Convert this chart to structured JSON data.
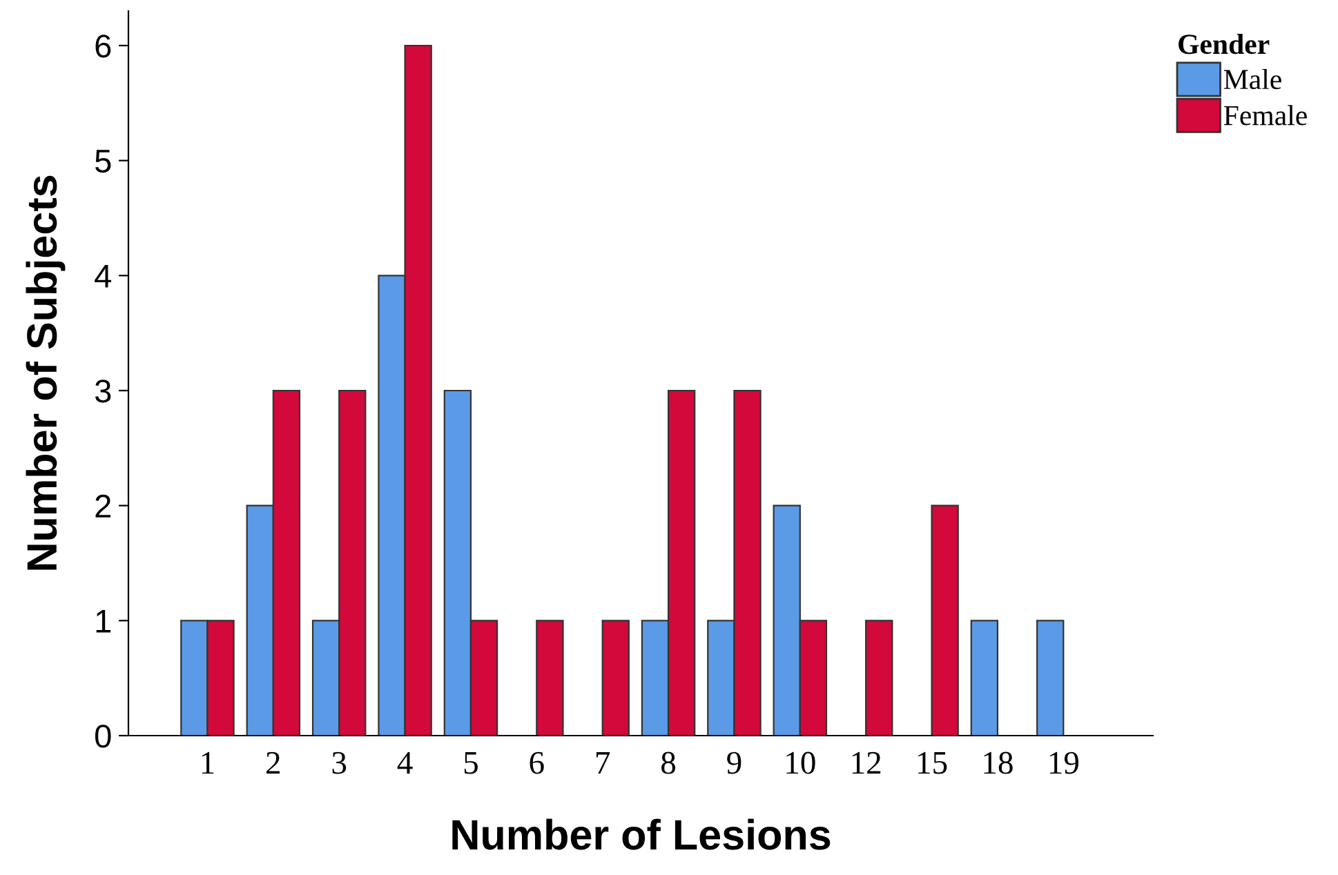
{
  "chart_data": {
    "type": "bar",
    "xlabel": "Number of Lesions",
    "ylabel": "Number of Subjects",
    "legend_title": "Gender",
    "categories": [
      "1",
      "2",
      "3",
      "4",
      "5",
      "6",
      "7",
      "8",
      "9",
      "10",
      "12",
      "15",
      "18",
      "19"
    ],
    "series": [
      {
        "name": "Male",
        "color": "#5b9ae6",
        "values": [
          1,
          2,
          1,
          4,
          3,
          0,
          0,
          1,
          1,
          2,
          0,
          0,
          1,
          1
        ]
      },
      {
        "name": "Female",
        "color": "#d2093a",
        "values": [
          1,
          3,
          3,
          6,
          1,
          1,
          1,
          3,
          3,
          1,
          1,
          2,
          0,
          0
        ]
      }
    ],
    "ylim": [
      0,
      6.3
    ],
    "yticks": [
      0,
      1,
      2,
      3,
      4,
      5,
      6
    ],
    "grid": false,
    "legend": "top right"
  }
}
